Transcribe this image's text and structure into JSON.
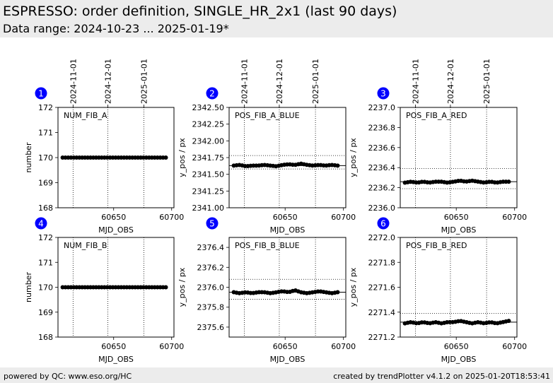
{
  "header": {
    "title": "ESPRESSO: order definition, SINGLE_HR_2x1 (last 90 days)",
    "subtitle": "Data range: 2024-10-23 ... 2025-01-19*"
  },
  "footer": {
    "left": "powered by QC: www.eso.org/HC",
    "right": "created by trendPlotter v4.1.2 on 2025-01-20T18:53:41"
  },
  "chart_data": [
    {
      "type": "scatter",
      "panel_number": "1",
      "label": "NUM_FIB_A",
      "xlabel": "MJD_OBS",
      "ylabel": "number",
      "xlim": [
        60602,
        60702
      ],
      "xticks": [
        60650,
        60700
      ],
      "ylim": [
        168,
        172
      ],
      "yticks": [
        168,
        169,
        170,
        171,
        172
      ],
      "ytick_labels": [
        "168",
        "169",
        "170",
        "171",
        "172"
      ],
      "date_ticks": [
        {
          "x": 60615,
          "label": "2024-11-01"
        },
        {
          "x": 60645,
          "label": "2024-12-01"
        },
        {
          "x": 60676,
          "label": "2025-01-01"
        }
      ],
      "ref_lines": [],
      "x_range": [
        60606,
        60695
      ],
      "y_values": [
        170,
        170,
        170,
        170,
        170,
        170,
        170,
        170,
        170,
        170,
        170,
        170,
        170,
        170,
        170,
        170,
        170,
        170
      ]
    },
    {
      "type": "scatter",
      "panel_number": "2",
      "label": "POS_FIB_A_BLUE",
      "xlabel": "MJD_OBS",
      "ylabel": "y_pos / px",
      "xlim": [
        60602,
        60702
      ],
      "xticks": [
        60650,
        60700
      ],
      "ylim": [
        2341.0,
        2342.5
      ],
      "yticks": [
        2341.0,
        2341.25,
        2341.5,
        2341.75,
        2342.0,
        2342.25,
        2342.5
      ],
      "ytick_labels": [
        "2341.00",
        "2341.25",
        "2341.50",
        "2341.75",
        "2342.00",
        "2342.25",
        "2342.50"
      ],
      "date_ticks": [
        {
          "x": 60615,
          "label": "2024-11-01"
        },
        {
          "x": 60645,
          "label": "2024-12-01"
        },
        {
          "x": 60676,
          "label": "2025-01-01"
        }
      ],
      "ref_lines": [
        {
          "y": 2341.63,
          "style": "solid"
        },
        {
          "y": 2341.78,
          "style": "dotted"
        },
        {
          "y": 2341.58,
          "style": "dotted"
        }
      ],
      "x_range": [
        60606,
        60695
      ],
      "y_values": [
        2341.63,
        2341.64,
        2341.62,
        2341.63,
        2341.63,
        2341.64,
        2341.63,
        2341.62,
        2341.64,
        2341.65,
        2341.64,
        2341.66,
        2341.64,
        2341.63,
        2341.64,
        2341.63,
        2341.64,
        2341.63
      ]
    },
    {
      "type": "scatter",
      "panel_number": "3",
      "label": "POS_FIB_A_RED",
      "xlabel": "MJD_OBS",
      "ylabel": "y_pos / px",
      "xlim": [
        60602,
        60702
      ],
      "xticks": [
        60650,
        60700
      ],
      "ylim": [
        2236.0,
        2237.0
      ],
      "yticks": [
        2236.0,
        2236.2,
        2236.4,
        2236.6,
        2236.8,
        2237.0
      ],
      "ytick_labels": [
        "2236.0",
        "2236.2",
        "2236.4",
        "2236.6",
        "2236.8",
        "2237.0"
      ],
      "date_ticks": [
        {
          "x": 60615,
          "label": "2024-11-01"
        },
        {
          "x": 60645,
          "label": "2024-12-01"
        },
        {
          "x": 60676,
          "label": "2025-01-01"
        }
      ],
      "ref_lines": [
        {
          "y": 2236.26,
          "style": "solid"
        },
        {
          "y": 2236.39,
          "style": "dotted"
        },
        {
          "y": 2236.19,
          "style": "dotted"
        }
      ],
      "x_range": [
        60606,
        60695
      ],
      "y_values": [
        2236.25,
        2236.26,
        2236.25,
        2236.26,
        2236.25,
        2236.26,
        2236.26,
        2236.25,
        2236.26,
        2236.27,
        2236.26,
        2236.27,
        2236.26,
        2236.25,
        2236.26,
        2236.25,
        2236.26,
        2236.26
      ]
    },
    {
      "type": "scatter",
      "panel_number": "4",
      "label": "NUM_FIB_B",
      "xlabel": "MJD_OBS",
      "ylabel": "number",
      "xlim": [
        60602,
        60702
      ],
      "xticks": [
        60650,
        60700
      ],
      "ylim": [
        168,
        172
      ],
      "yticks": [
        168,
        169,
        170,
        171,
        172
      ],
      "ytick_labels": [
        "168",
        "169",
        "170",
        "171",
        "172"
      ],
      "date_ticks": [
        {
          "x": 60615,
          "label": ""
        },
        {
          "x": 60645,
          "label": ""
        },
        {
          "x": 60676,
          "label": ""
        }
      ],
      "ref_lines": [],
      "x_range": [
        60606,
        60695
      ],
      "y_values": [
        170,
        170,
        170,
        170,
        170,
        170,
        170,
        170,
        170,
        170,
        170,
        170,
        170,
        170,
        170,
        170,
        170,
        170
      ]
    },
    {
      "type": "scatter",
      "panel_number": "5",
      "label": "POS_FIB_B_BLUE",
      "xlabel": "MJD_OBS",
      "ylabel": "y_pos / px",
      "xlim": [
        60602,
        60702
      ],
      "xticks": [
        60650,
        60700
      ],
      "ylim": [
        2375.5,
        2376.5
      ],
      "yticks": [
        2375.6,
        2375.8,
        2376.0,
        2376.2,
        2376.4
      ],
      "ytick_labels": [
        "2375.6",
        "2375.8",
        "2376.0",
        "2376.2",
        "2376.4"
      ],
      "date_ticks": [
        {
          "x": 60615,
          "label": ""
        },
        {
          "x": 60645,
          "label": ""
        },
        {
          "x": 60676,
          "label": ""
        }
      ],
      "ref_lines": [
        {
          "y": 2375.95,
          "style": "solid"
        },
        {
          "y": 2376.08,
          "style": "dotted"
        },
        {
          "y": 2375.88,
          "style": "dotted"
        }
      ],
      "x_range": [
        60606,
        60695
      ],
      "y_values": [
        2375.95,
        2375.94,
        2375.95,
        2375.94,
        2375.95,
        2375.95,
        2375.94,
        2375.95,
        2375.96,
        2375.95,
        2375.97,
        2375.95,
        2375.94,
        2375.95,
        2375.96,
        2375.95,
        2375.94,
        2375.95
      ]
    },
    {
      "type": "scatter",
      "panel_number": "6",
      "label": "POS_FIB_B_RED",
      "xlabel": "MJD_OBS",
      "ylabel": "y_pos / px",
      "xlim": [
        60602,
        60702
      ],
      "xticks": [
        60650,
        60700
      ],
      "ylim": [
        2271.2,
        2272.0
      ],
      "yticks": [
        2271.2,
        2271.4,
        2271.6,
        2271.8,
        2272.0
      ],
      "ytick_labels": [
        "2271.2",
        "2271.4",
        "2271.6",
        "2271.8",
        "2272.0"
      ],
      "date_ticks": [
        {
          "x": 60615,
          "label": ""
        },
        {
          "x": 60645,
          "label": ""
        },
        {
          "x": 60676,
          "label": ""
        }
      ],
      "ref_lines": [
        {
          "y": 2271.32,
          "style": "solid"
        },
        {
          "y": 2271.39,
          "style": "dotted"
        }
      ],
      "x_range": [
        60606,
        60695
      ],
      "y_values": [
        2271.31,
        2271.32,
        2271.31,
        2271.32,
        2271.31,
        2271.32,
        2271.31,
        2271.32,
        2271.32,
        2271.33,
        2271.32,
        2271.31,
        2271.32,
        2271.31,
        2271.32,
        2271.31,
        2271.32,
        2271.33
      ]
    }
  ],
  "colors": {
    "badge": "#0000ff",
    "marker": "#000000",
    "band": "#ececec"
  }
}
